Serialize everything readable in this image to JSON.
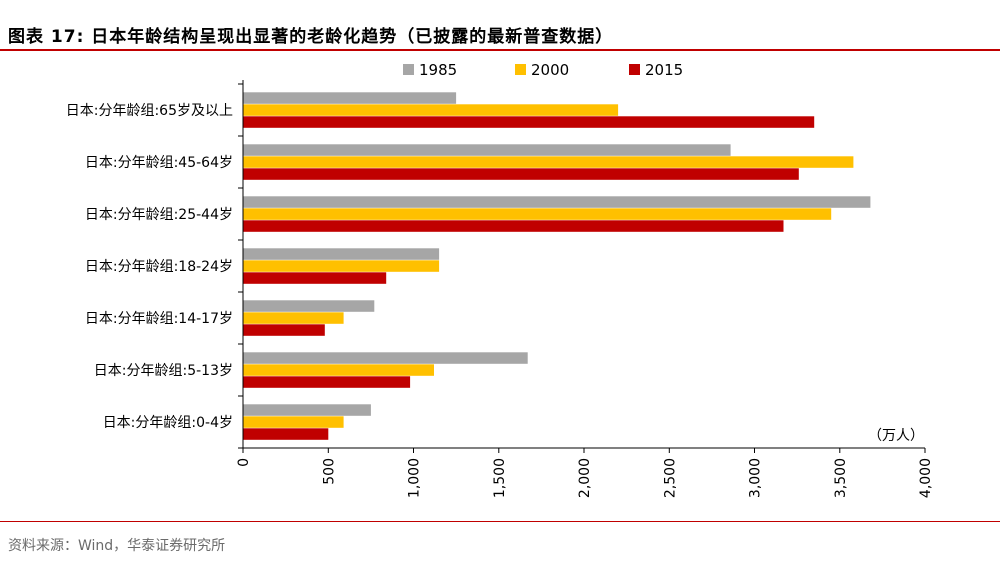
{
  "header": {
    "title": "图表 17:   日本年龄结构呈现出显著的老龄化趋势（已披露的最新普查数据）"
  },
  "footer": {
    "source": "资料来源：Wind，华泰证券研究所"
  },
  "chart_data": {
    "type": "bar",
    "orientation": "horizontal",
    "categories": [
      "日本:分年龄组:65岁及以上",
      "日本:分年龄组:45-64岁",
      "日本:分年龄组:25-44岁",
      "日本:分年龄组:18-24岁",
      "日本:分年龄组:14-17岁",
      "日本:分年龄组:5-13岁",
      "日本:分年龄组:0-4岁"
    ],
    "series": [
      {
        "name": "1985",
        "color": "#a6a6a6",
        "values": [
          1250,
          2860,
          3680,
          1150,
          770,
          1670,
          750
        ]
      },
      {
        "name": "2000",
        "color": "#ffc000",
        "values": [
          2200,
          3580,
          3450,
          1150,
          590,
          1120,
          590
        ]
      },
      {
        "name": "2015",
        "color": "#c00000",
        "values": [
          3350,
          3260,
          3170,
          840,
          480,
          980,
          500
        ]
      }
    ],
    "unit_label": "（万人）",
    "xlim": [
      0,
      4000
    ],
    "xticks": [
      0,
      500,
      1000,
      1500,
      2000,
      2500,
      3000,
      3500,
      4000
    ],
    "xtick_labels": [
      "0",
      "500",
      "1,000",
      "1,500",
      "2,000",
      "2,500",
      "3,000",
      "3,500",
      "4,000"
    ],
    "grid": false,
    "legend_position": "top"
  }
}
